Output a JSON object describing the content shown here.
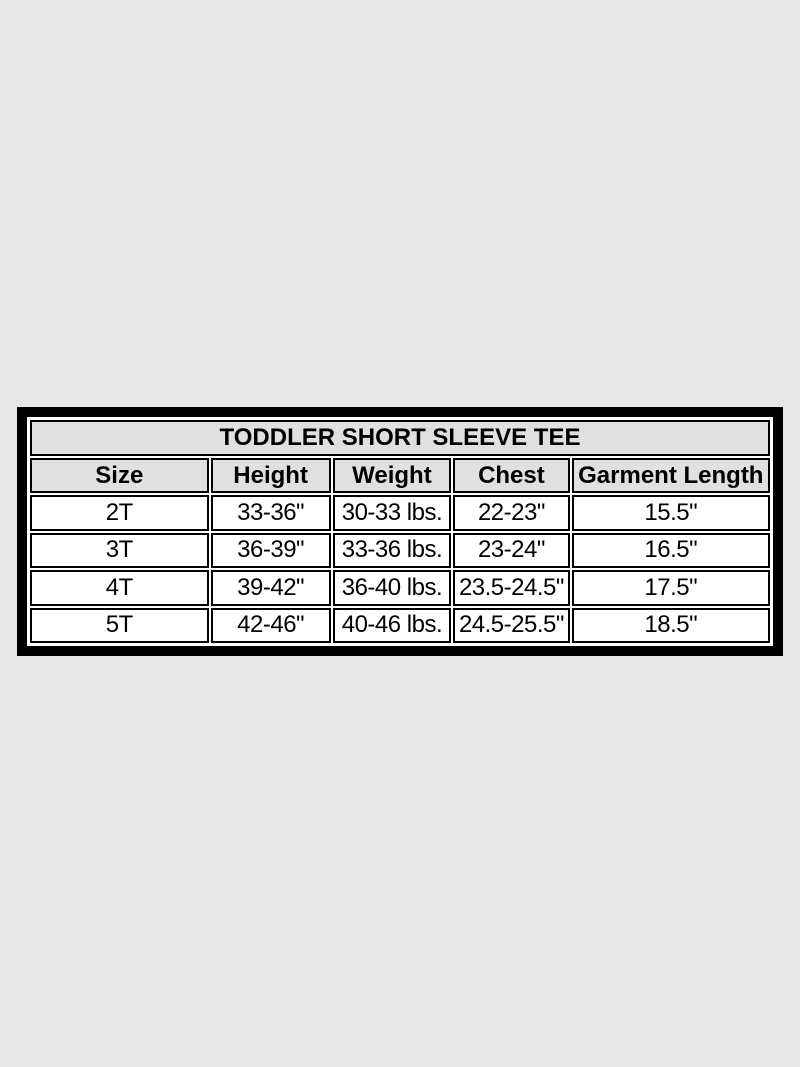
{
  "page": {
    "background_color": "#e7e7e7"
  },
  "size_chart": {
    "title": "TODDLER SHORT SLEEVE TEE",
    "columns": [
      "Size",
      "Height",
      "Weight",
      "Chest",
      "Garment Length"
    ],
    "rows": [
      [
        "2T",
        "33-36\"",
        "30-33 lbs.",
        "22-23\"",
        "15.5\""
      ],
      [
        "3T",
        "36-39\"",
        "33-36 lbs.",
        "23-24\"",
        "16.5\""
      ],
      [
        "4T",
        "39-42\"",
        "36-40 lbs.",
        "23.5-24.5\"",
        "17.5\""
      ],
      [
        "5T",
        "42-46\"",
        "40-46 lbs.",
        "24.5-25.5\"",
        "18.5\""
      ]
    ],
    "colors": {
      "frame_border": "#000000",
      "header_background": "#e0e0e0",
      "row_background": "#ffffff",
      "text": "#000000"
    }
  },
  "chart_data": {
    "type": "table",
    "title": "TODDLER SHORT SLEEVE TEE",
    "columns": [
      "Size",
      "Height",
      "Weight",
      "Chest",
      "Garment Length"
    ],
    "rows": [
      [
        "2T",
        "33-36\"",
        "30-33 lbs.",
        "22-23\"",
        "15.5\""
      ],
      [
        "3T",
        "36-39\"",
        "33-36 lbs.",
        "23-24\"",
        "16.5\""
      ],
      [
        "4T",
        "39-42\"",
        "36-40 lbs.",
        "23.5-24.5\"",
        "17.5\""
      ],
      [
        "5T",
        "42-46\"",
        "40-46 lbs.",
        "24.5-25.5\"",
        "18.5\""
      ]
    ],
    "notes": "Toddler short sleeve tee size chart; height and chest in inches, weight in pounds, garment length in inches"
  }
}
